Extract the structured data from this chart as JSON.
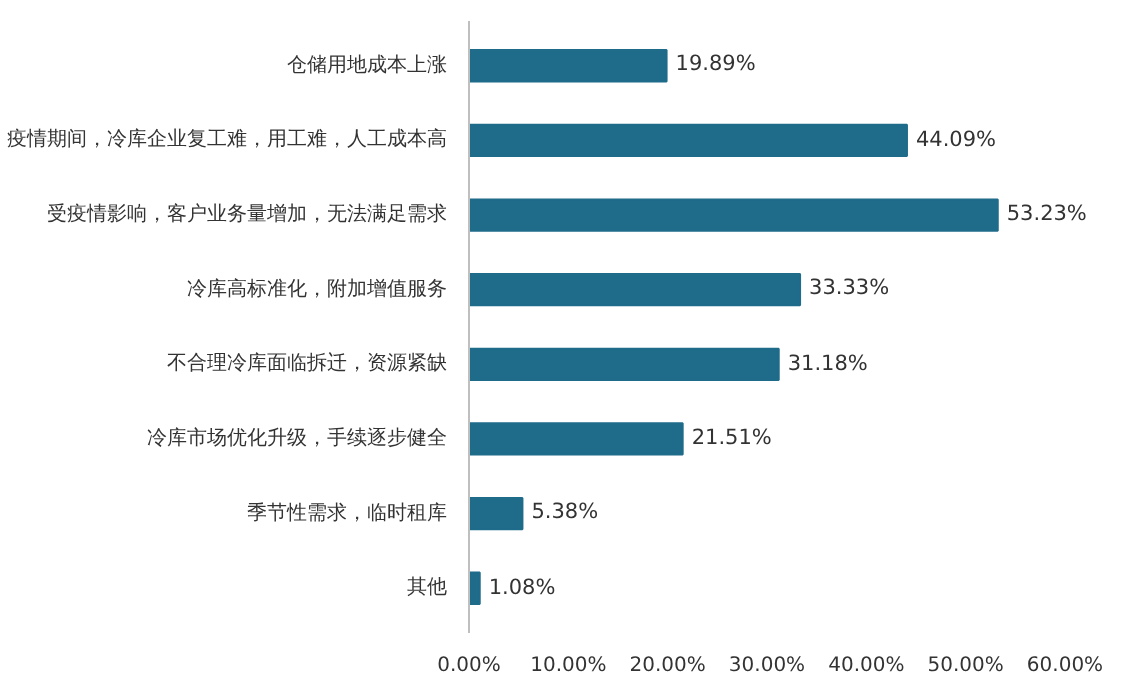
{
  "chart_data": {
    "type": "bar",
    "orientation": "horizontal",
    "categories": [
      "仓储用地成本上涨",
      "疫情期间，冷库企业复工难，用工难，人工成本高",
      "受疫情影响，客户业务量增加，无法满足需求",
      "冷库高标准化，附加增值服务",
      "不合理冷库面临拆迁，资源紧缺",
      "冷库市场优化升级，手续逐步健全",
      "季节性需求，临时租库",
      "其他"
    ],
    "values": [
      19.89,
      44.09,
      53.23,
      33.33,
      31.18,
      21.51,
      5.38,
      1.08
    ],
    "value_labels": [
      "19.89%",
      "44.09%",
      "53.23%",
      "33.33%",
      "31.18%",
      "21.51%",
      "5.38%",
      "1.08%"
    ],
    "color": "#1f6b8a",
    "xlim": [
      0,
      60
    ],
    "xticks": [
      {
        "value": 0,
        "label": "0.00%"
      },
      {
        "value": 10,
        "label": "10.00%"
      },
      {
        "value": 20,
        "label": "20.00%"
      },
      {
        "value": 30,
        "label": "30.00%"
      },
      {
        "value": 40,
        "label": "40.00%"
      },
      {
        "value": 50,
        "label": "50.00%"
      },
      {
        "value": 60,
        "label": "60.00%"
      }
    ],
    "grid": false
  }
}
